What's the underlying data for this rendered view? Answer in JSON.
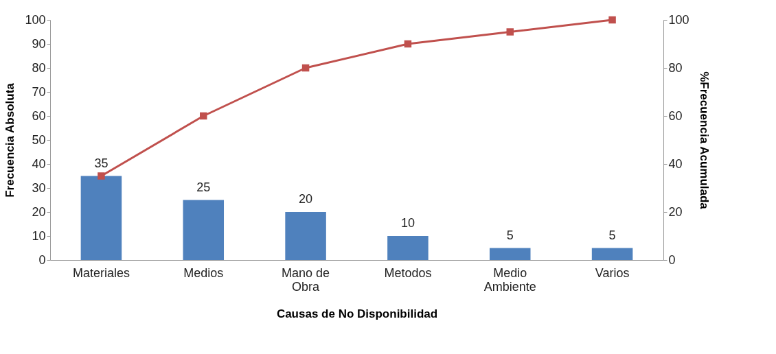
{
  "chart_data": {
    "type": "bar",
    "xlabel": "Causas de No Disponibilidad",
    "ylabel": "Frecuencia Absoluta",
    "y2label": "%Frecuencia Acumulada",
    "categories": [
      "Materiales",
      "Medios",
      "Mano de Obra",
      "Metodos",
      "Medio Ambiente",
      "Varios"
    ],
    "series": [
      {
        "color": "#4f81bd",
        "values": [
          35,
          25,
          20,
          10,
          5,
          5
        ],
        "value_labels": [
          "35",
          "25",
          "20",
          "10",
          "5",
          "5"
        ]
      },
      {
        "type": "line",
        "axis": "y2",
        "color": "#c0504d",
        "values": [
          35,
          60,
          80,
          90,
          95,
          100
        ]
      }
    ],
    "ylim": [
      0,
      100
    ],
    "yticks": [
      0,
      10,
      20,
      30,
      40,
      50,
      60,
      70,
      80,
      90,
      100
    ],
    "y2lim": [
      0,
      100
    ],
    "y2ticks": [
      0,
      20,
      40,
      60,
      80,
      100
    ],
    "marker": "square",
    "grid": false
  }
}
